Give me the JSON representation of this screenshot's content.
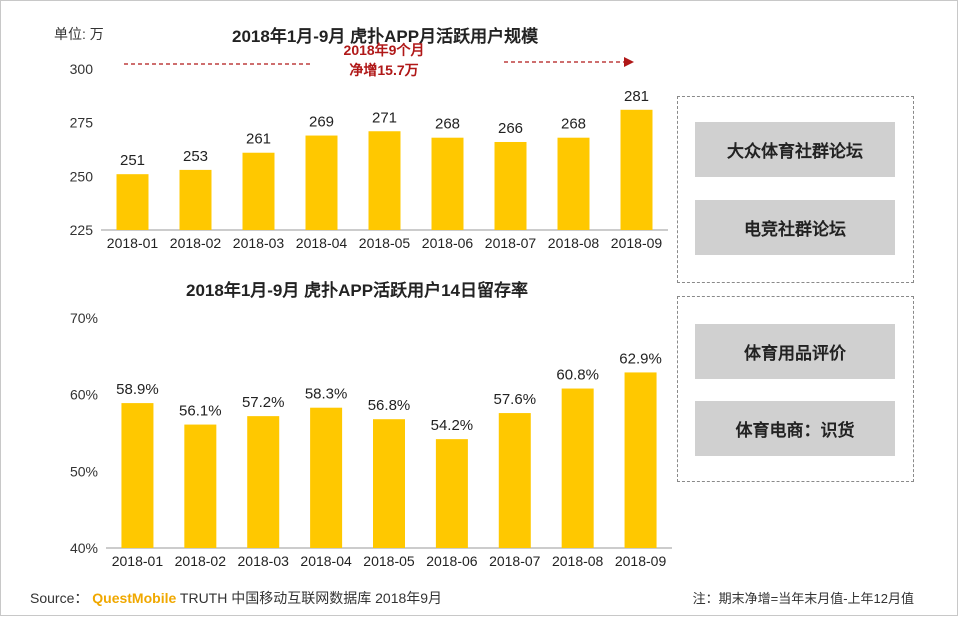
{
  "unit_label": "单位: 万",
  "panel_top": {
    "title": "2018年1月-9月  虎扑APP月活跃用户规模",
    "annotation_line1": "2018年9个月",
    "annotation_line2": "净增15.7万"
  },
  "panel_bottom": {
    "title": "2018年1月-9月  虎扑APP活跃用户14日留存率"
  },
  "box1": {
    "item1": "大众体育社群论坛",
    "item2": "电竞社群论坛"
  },
  "box2": {
    "item1": "体育用品评价",
    "item2": "体育电商：识货"
  },
  "footer": {
    "source_prefix": "Source：",
    "source_brand": "QuestMobile",
    "source_rest": "TRUTH 中国移动互联网数据库 2018年9月",
    "note": "注：期末净增=当年末月值-上年12月值"
  },
  "colors": {
    "bar": "#FFC800",
    "arrow": "#b01818",
    "axis": "#999999"
  },
  "chart_data": [
    {
      "type": "bar",
      "title": "2018年1月-9月  虎扑APP月活跃用户规模",
      "categories": [
        "2018-01",
        "2018-02",
        "2018-03",
        "2018-04",
        "2018-05",
        "2018-06",
        "2018-07",
        "2018-08",
        "2018-09"
      ],
      "values": [
        251,
        253,
        261,
        269,
        271,
        268,
        266,
        268,
        281
      ],
      "value_labels": [
        "251",
        "253",
        "261",
        "269",
        "271",
        "268",
        "266",
        "268",
        "281"
      ],
      "ylim": [
        225,
        300
      ],
      "yticks": [
        225,
        250,
        275,
        300
      ],
      "ytick_labels": [
        "225",
        "250",
        "275",
        "300"
      ],
      "ylabel": "单位: 万",
      "grid": false
    },
    {
      "type": "bar",
      "title": "2018年1月-9月  虎扑APP活跃用户14日留存率",
      "categories": [
        "2018-01",
        "2018-02",
        "2018-03",
        "2018-04",
        "2018-05",
        "2018-06",
        "2018-07",
        "2018-08",
        "2018-09"
      ],
      "values": [
        58.9,
        56.1,
        57.2,
        58.3,
        56.8,
        54.2,
        57.6,
        60.8,
        62.9
      ],
      "value_labels": [
        "58.9%",
        "56.1%",
        "57.2%",
        "58.3%",
        "56.8%",
        "54.2%",
        "57.6%",
        "60.8%",
        "62.9%"
      ],
      "ylim": [
        40,
        70
      ],
      "yticks": [
        40,
        50,
        60,
        70
      ],
      "ytick_labels": [
        "40%",
        "50%",
        "60%",
        "70%"
      ],
      "grid": false
    }
  ]
}
